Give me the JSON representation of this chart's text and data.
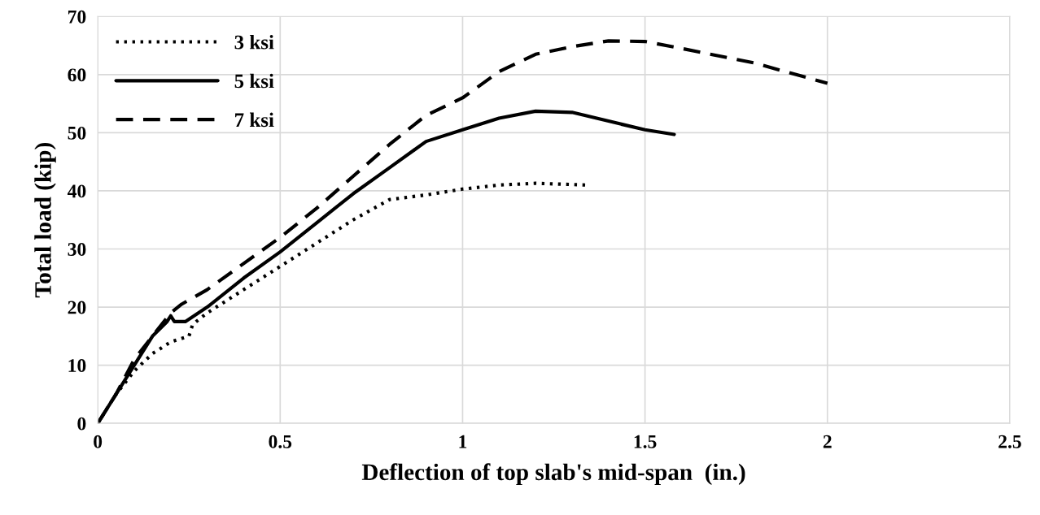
{
  "chart_data": {
    "type": "line",
    "xlabel": "Deflection of top slab's mid-span  (in.)",
    "ylabel": "Total load (kip)",
    "xlim": [
      0,
      2.5
    ],
    "xticks": [
      0,
      0.5,
      1,
      1.5,
      2,
      2.5
    ],
    "ylim": [
      0,
      70
    ],
    "yticks": [
      0,
      10,
      20,
      30,
      40,
      50,
      60,
      70
    ],
    "grid": true,
    "legend": "top left",
    "marker": "none",
    "series": [
      {
        "name": "3 ksi",
        "color": "#000000",
        "line_style": "dotted",
        "x": [
          0,
          0.05,
          0.1,
          0.15,
          0.2,
          0.25,
          0.26,
          0.3,
          0.4,
          0.5,
          0.6,
          0.7,
          0.8,
          0.9,
          1.0,
          1.1,
          1.2,
          1.34
        ],
        "values": [
          0,
          5,
          9,
          12,
          14,
          15,
          17,
          19,
          23,
          27,
          31,
          35,
          38.5,
          39.3,
          40.3,
          41,
          41.3,
          41
        ]
      },
      {
        "name": "5 ksi",
        "color": "#000000",
        "line_style": "solid",
        "x": [
          0,
          0.05,
          0.1,
          0.15,
          0.19,
          0.2,
          0.21,
          0.24,
          0.3,
          0.4,
          0.5,
          0.6,
          0.7,
          0.8,
          0.9,
          1.0,
          1.1,
          1.2,
          1.3,
          1.4,
          1.5,
          1.58
        ],
        "values": [
          0,
          5,
          10,
          15,
          17.5,
          18.5,
          17.5,
          17.5,
          20,
          25,
          29.5,
          34.5,
          39.5,
          44,
          48.5,
          50.5,
          52.5,
          53.7,
          53.5,
          52,
          50.5,
          49.7
        ]
      },
      {
        "name": "7 ksi",
        "color": "#000000",
        "line_style": "dashed",
        "x": [
          0,
          0.05,
          0.1,
          0.15,
          0.2,
          0.23,
          0.3,
          0.4,
          0.5,
          0.6,
          0.7,
          0.8,
          0.9,
          1.0,
          1.1,
          1.2,
          1.3,
          1.4,
          1.5,
          1.6,
          1.8,
          2.0
        ],
        "values": [
          0,
          5,
          11,
          15,
          19,
          20.5,
          23,
          27.5,
          32,
          37,
          42.5,
          48,
          53,
          56,
          60.5,
          63.5,
          64.8,
          65.8,
          65.7,
          64.5,
          62,
          58.5
        ]
      }
    ]
  }
}
